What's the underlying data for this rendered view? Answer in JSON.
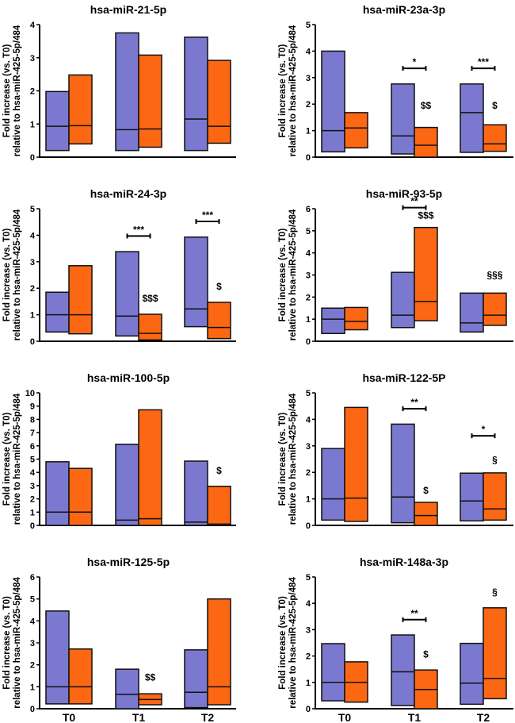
{
  "colors": {
    "group_a": "#7b78cf",
    "group_b": "#fb6712",
    "stroke": "#111111"
  },
  "chart_data": [
    {
      "type": "bar",
      "subtype": "floating-box (min-max with median line)",
      "title": "hsa-miR-21-5p",
      "ylabel": "Fold increase (vs. T0) relative to hsa-miR-425-5p/484",
      "categories": [
        "T0",
        "T1",
        "T2"
      ],
      "show_xlabels": false,
      "ylim": [
        0,
        4
      ],
      "yticks": [
        0,
        1,
        2,
        3,
        4
      ],
      "series": [
        {
          "name": "group_a",
          "min": [
            0.2,
            0.2,
            0.2
          ],
          "median": [
            0.93,
            0.83,
            1.15
          ],
          "max": [
            1.98,
            3.75,
            3.62
          ]
        },
        {
          "name": "group_b",
          "min": [
            0.4,
            0.3,
            0.42
          ],
          "median": [
            0.95,
            0.85,
            0.93
          ],
          "max": [
            2.48,
            3.08,
            2.92
          ]
        }
      ],
      "annotations": []
    },
    {
      "type": "bar",
      "subtype": "floating-box (min-max with median line)",
      "title": "hsa-miR-23a-3p",
      "ylabel": "Fold increase (vs. T0) relative to hsa-miR-425-5p/484",
      "categories": [
        "T0",
        "T1",
        "T2"
      ],
      "show_xlabels": false,
      "ylim": [
        0,
        5
      ],
      "yticks": [
        0,
        1,
        2,
        3,
        4,
        5
      ],
      "series": [
        {
          "name": "group_a",
          "min": [
            0.2,
            0.12,
            0.18
          ],
          "median": [
            1.0,
            0.8,
            1.68
          ],
          "max": [
            4.0,
            2.76,
            2.76
          ]
        },
        {
          "name": "group_b",
          "min": [
            0.35,
            0.0,
            0.22
          ],
          "median": [
            1.1,
            0.45,
            0.5
          ],
          "max": [
            1.68,
            1.12,
            1.22
          ]
        }
      ],
      "annotations": [
        {
          "type": "bracket",
          "category": 1,
          "y": 3.35,
          "text": "*"
        },
        {
          "type": "bracket",
          "category": 2,
          "y": 3.35,
          "text": "***"
        },
        {
          "type": "label",
          "category": 1,
          "series": 1,
          "y": 1.82,
          "text": "$$"
        },
        {
          "type": "label",
          "category": 2,
          "series": 1,
          "y": 1.82,
          "text": "$"
        }
      ]
    },
    {
      "type": "bar",
      "subtype": "floating-box (min-max with median line)",
      "title": "hsa-miR-24-3p",
      "ylabel": "Fold increase (vs. T0) relative to hsa-miR-425-5p/484",
      "categories": [
        "T0",
        "T1",
        "T2"
      ],
      "show_xlabels": false,
      "ylim": [
        0,
        5
      ],
      "yticks": [
        0,
        1,
        2,
        3,
        4,
        5
      ],
      "series": [
        {
          "name": "group_a",
          "min": [
            0.35,
            0.2,
            0.55
          ],
          "median": [
            1.0,
            0.95,
            1.22
          ],
          "max": [
            1.85,
            3.38,
            3.93
          ]
        },
        {
          "name": "group_b",
          "min": [
            0.28,
            0.05,
            0.1
          ],
          "median": [
            1.0,
            0.3,
            0.52
          ],
          "max": [
            2.85,
            1.02,
            1.47
          ]
        }
      ],
      "annotations": [
        {
          "type": "bracket",
          "category": 1,
          "y": 3.97,
          "text": "***"
        },
        {
          "type": "bracket",
          "category": 2,
          "y": 4.52,
          "text": "***"
        },
        {
          "type": "label",
          "category": 1,
          "series": 1,
          "y": 1.5,
          "text": "$$$"
        },
        {
          "type": "label",
          "category": 2,
          "series": 1,
          "y": 1.95,
          "text": "$"
        }
      ]
    },
    {
      "type": "bar",
      "subtype": "floating-box (min-max with median line)",
      "title": "hsa-miR-93-5p",
      "ylabel": "Fold increase (vs. T0) relative to hsa-miR-425-5p/484",
      "categories": [
        "T0",
        "T1",
        "T2"
      ],
      "show_xlabels": false,
      "ylim": [
        0,
        6
      ],
      "yticks": [
        0,
        1,
        2,
        3,
        4,
        5,
        6
      ],
      "series": [
        {
          "name": "group_a",
          "min": [
            0.35,
            0.62,
            0.42
          ],
          "median": [
            1.0,
            1.18,
            0.83
          ],
          "max": [
            1.5,
            3.12,
            2.18
          ]
        },
        {
          "name": "group_b",
          "min": [
            0.52,
            0.93,
            0.72
          ],
          "median": [
            0.9,
            1.8,
            1.18
          ],
          "max": [
            1.53,
            5.15,
            2.18
          ]
        }
      ],
      "annotations": [
        {
          "type": "bracket",
          "category": 1,
          "y": 6.05,
          "text": "**"
        },
        {
          "type": "label",
          "category": 1,
          "series": 1,
          "y": 5.55,
          "text": "$$$"
        },
        {
          "type": "label",
          "category": 2,
          "series": 1,
          "y": 2.85,
          "text": "§§§"
        }
      ]
    },
    {
      "type": "bar",
      "subtype": "floating-box (min-max with median line)",
      "title": "hsa-miR-100-5p",
      "ylabel": "Fold increase (vs. T0) relative to hsa-miR-425-5p/484",
      "categories": [
        "T0",
        "T1",
        "T2"
      ],
      "show_xlabels": false,
      "ylim": [
        0,
        10
      ],
      "yticks": [
        0,
        1,
        2,
        3,
        4,
        5,
        6,
        7,
        8,
        9,
        10
      ],
      "series": [
        {
          "name": "group_a",
          "min": [
            0.0,
            0.0,
            0.0
          ],
          "median": [
            1.0,
            0.4,
            0.25
          ],
          "max": [
            4.8,
            6.12,
            4.85
          ]
        },
        {
          "name": "group_b",
          "min": [
            0.0,
            0.0,
            0.0
          ],
          "median": [
            1.0,
            0.5,
            0.1
          ],
          "max": [
            4.3,
            8.72,
            2.95
          ]
        }
      ],
      "annotations": [
        {
          "type": "label",
          "category": 2,
          "series": 1,
          "y": 3.9,
          "text": "$"
        }
      ]
    },
    {
      "type": "bar",
      "subtype": "floating-box (min-max with median line)",
      "title": "hsa-miR-122-5P",
      "ylabel": "Fold increase (vs. T0) relative to hsa-miR-425-5p/484",
      "categories": [
        "T0",
        "T1",
        "T2"
      ],
      "show_xlabels": false,
      "ylim": [
        0,
        5
      ],
      "yticks": [
        0,
        1,
        2,
        3,
        4,
        5
      ],
      "series": [
        {
          "name": "group_a",
          "min": [
            0.2,
            0.1,
            0.17
          ],
          "median": [
            1.0,
            1.07,
            0.92
          ],
          "max": [
            2.9,
            3.82,
            1.97
          ]
        },
        {
          "name": "group_b",
          "min": [
            0.15,
            0.0,
            0.2
          ],
          "median": [
            1.03,
            0.37,
            0.62
          ],
          "max": [
            4.45,
            0.87,
            1.98
          ]
        }
      ],
      "annotations": [
        {
          "type": "bracket",
          "category": 1,
          "y": 4.4,
          "text": "**"
        },
        {
          "type": "bracket",
          "category": 2,
          "y": 3.38,
          "text": "*"
        },
        {
          "type": "label",
          "category": 1,
          "series": 1,
          "y": 1.2,
          "text": "$"
        },
        {
          "type": "label",
          "category": 2,
          "series": 1,
          "y": 2.35,
          "text": "§"
        }
      ]
    },
    {
      "type": "bar",
      "subtype": "floating-box (min-max with median line)",
      "title": "hsa-miR-125-5p",
      "ylabel": "Fold increase (vs. T0) relative to hsa-miR-425-5p/484",
      "categories": [
        "T0",
        "T1",
        "T2"
      ],
      "show_xlabels": true,
      "ylim": [
        0,
        6
      ],
      "yticks": [
        0,
        1,
        2,
        3,
        4,
        5,
        6
      ],
      "series": [
        {
          "name": "group_a",
          "min": [
            0.22,
            0.0,
            0.05
          ],
          "median": [
            1.0,
            0.65,
            0.75
          ],
          "max": [
            4.45,
            1.8,
            2.68
          ]
        },
        {
          "name": "group_b",
          "min": [
            0.22,
            0.18,
            0.18
          ],
          "median": [
            1.0,
            0.42,
            1.0
          ],
          "max": [
            2.72,
            0.68,
            5.0
          ]
        }
      ],
      "annotations": [
        {
          "type": "label",
          "category": 1,
          "series": 1,
          "y": 1.28,
          "text": "$$"
        }
      ]
    },
    {
      "type": "bar",
      "subtype": "floating-box (min-max with median line)",
      "title": "hsa-miR-148a-3p",
      "ylabel": "Fold increase (vs. T0) relative to hsa-miR-425-5p/484",
      "categories": [
        "T0",
        "T1",
        "T2"
      ],
      "show_xlabels": true,
      "ylim": [
        0,
        5
      ],
      "yticks": [
        0,
        1,
        2,
        3,
        4,
        5
      ],
      "series": [
        {
          "name": "group_a",
          "min": [
            0.3,
            0.12,
            0.17
          ],
          "median": [
            1.0,
            1.4,
            0.97
          ],
          "max": [
            2.47,
            2.8,
            2.48
          ]
        },
        {
          "name": "group_b",
          "min": [
            0.25,
            0.0,
            0.38
          ],
          "median": [
            1.0,
            0.73,
            1.15
          ],
          "max": [
            1.78,
            1.47,
            3.83
          ]
        }
      ],
      "annotations": [
        {
          "type": "bracket",
          "category": 1,
          "y": 3.38,
          "text": "**"
        },
        {
          "type": "label",
          "category": 1,
          "series": 1,
          "y": 1.95,
          "text": "$"
        },
        {
          "type": "label",
          "category": 2,
          "series": 1,
          "y": 4.3,
          "text": "§"
        }
      ]
    }
  ]
}
